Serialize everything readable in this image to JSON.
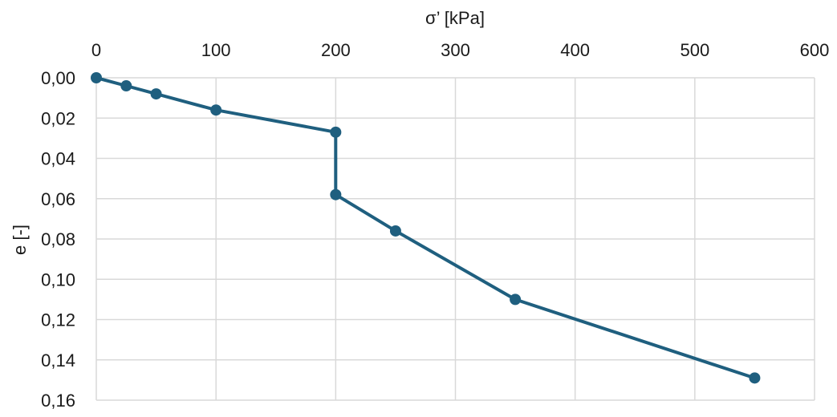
{
  "chart_data": {
    "type": "scatter",
    "xlabel": "σ’ [kPa]",
    "ylabel": "e [-]",
    "x_axis_position": "top",
    "y_axis_inverted": true,
    "xlim": [
      0,
      600
    ],
    "ylim": [
      0,
      0.16
    ],
    "x_ticks": [
      "0",
      "100",
      "200",
      "300",
      "400",
      "500",
      "600"
    ],
    "y_ticks": [
      "0,00",
      "0,02",
      "0,04",
      "0,06",
      "0,08",
      "0,10",
      "0,12",
      "0,14",
      "0,16"
    ],
    "grid": true,
    "legend": "none",
    "colors": {
      "series": "#1f5f7f",
      "grid": "#d9d9d9",
      "text": "#1a1a1a"
    },
    "series": [
      {
        "x": [
          0,
          25,
          50,
          100,
          200,
          200,
          250,
          350,
          550
        ],
        "y": [
          0.0,
          0.004,
          0.008,
          0.016,
          0.027,
          0.058,
          0.076,
          0.11,
          0.149
        ]
      }
    ]
  }
}
